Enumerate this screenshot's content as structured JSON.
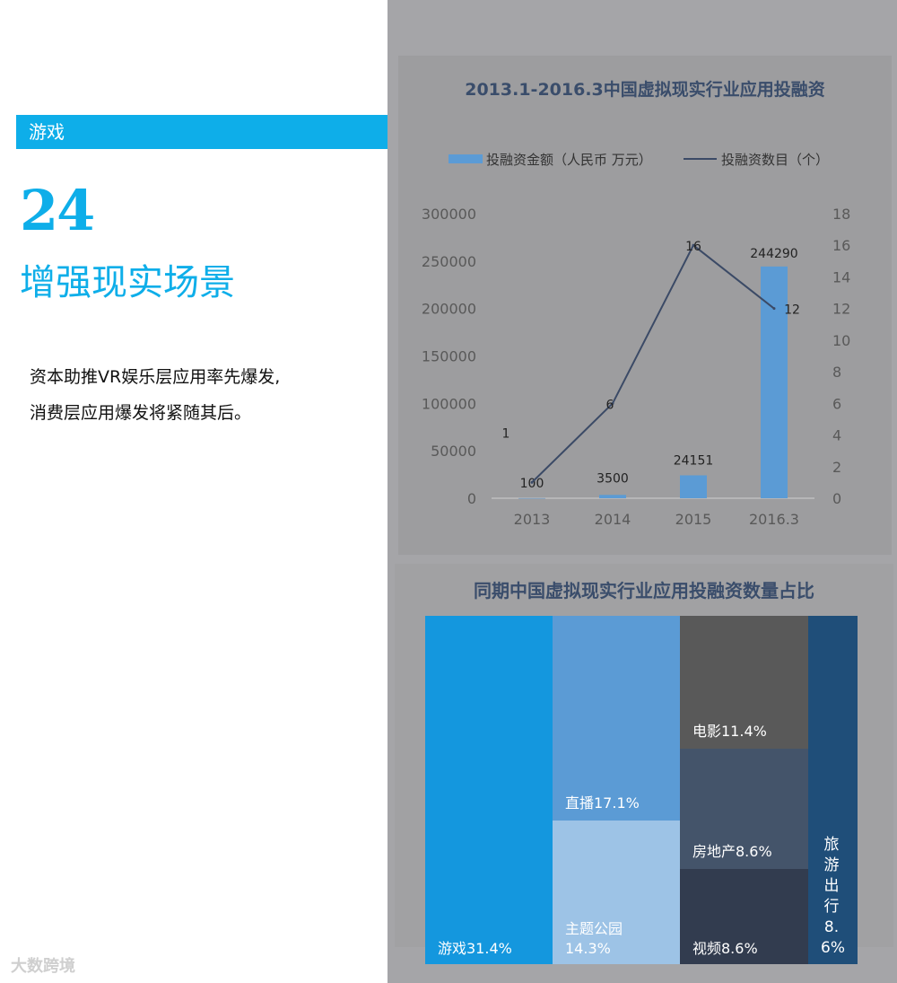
{
  "page": {
    "section_label": "游戏",
    "number": "24",
    "title": "增强现实场景",
    "desc_line1": "资本助推VR娱乐层应用率先爆发,",
    "desc_line2": "消费层应用爆发将紧随其后。",
    "watermark": "大数跨境"
  },
  "chart_data": [
    {
      "type": "bar",
      "title": "2013.1-2016.3中国虚拟现实行业应用投融资",
      "categories": [
        "2013",
        "2014",
        "2015",
        "2016.3"
      ],
      "series": [
        {
          "name": "投融资金额（人民币 万元）",
          "kind": "bar",
          "values": [
            100,
            3500,
            24151,
            244290
          ],
          "color": "#5b9bd5"
        },
        {
          "name": "投融资数目（个）",
          "kind": "line",
          "axis": "right",
          "values": [
            1,
            6,
            16,
            12
          ],
          "color": "#3b4a66"
        }
      ],
      "y_left": {
        "ticks": [
          "0",
          "50000",
          "100000",
          "150000",
          "200000",
          "250000",
          "300000"
        ],
        "range": [
          0,
          300000
        ]
      },
      "y_right": {
        "ticks": [
          "0",
          "2",
          "4",
          "6",
          "8",
          "10",
          "12",
          "14",
          "16",
          "18"
        ],
        "range": [
          0,
          18
        ]
      },
      "bar_labels": [
        "100",
        "3500",
        "24151",
        "244290"
      ],
      "line_labels": [
        "1",
        "6",
        "16",
        "12"
      ],
      "legend_position": "top"
    },
    {
      "type": "treemap",
      "title": "同期中国虚拟现实行业应用投融资数量占比",
      "items": [
        {
          "label": "游戏31.4%",
          "value": 31.4,
          "color": "#1497de"
        },
        {
          "label": "直播17.1%",
          "value": 17.1,
          "color": "#5b9bd5"
        },
        {
          "label": "主题公园\n14.3%",
          "value": 14.3,
          "color": "#9dc3e6"
        },
        {
          "label": "电影11.4%",
          "value": 11.4,
          "color": "#595959"
        },
        {
          "label": "房地产8.6%",
          "value": 8.6,
          "color": "#44546a"
        },
        {
          "label": "视频8.6%",
          "value": 8.6,
          "color": "#323c4f"
        },
        {
          "label": "旅游出行8.6%",
          "value": 8.6,
          "color": "#1f4e79"
        }
      ]
    }
  ]
}
